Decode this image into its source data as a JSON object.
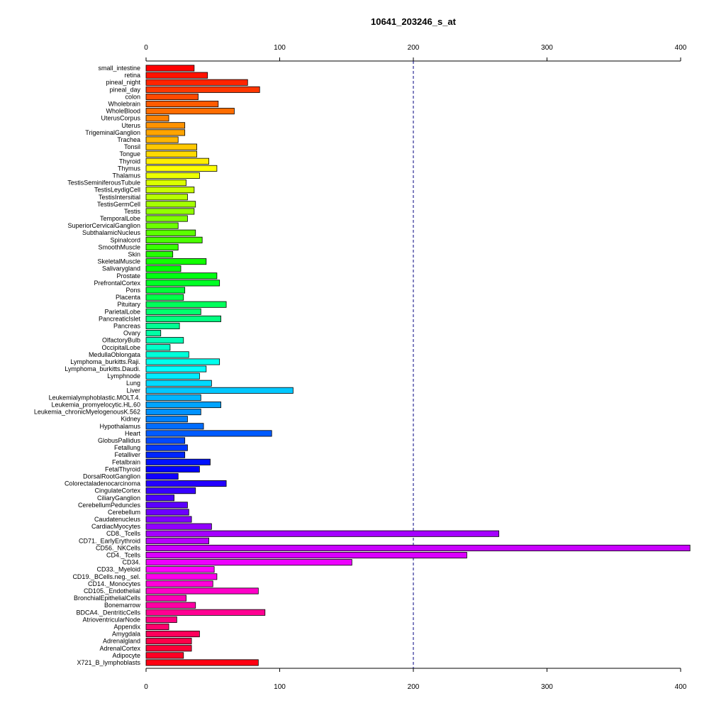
{
  "chart_data": {
    "type": "bar",
    "orientation": "horizontal",
    "title": "10641_203246_s_at",
    "xlabel": "",
    "ylabel": "",
    "xlim": [
      0,
      400
    ],
    "xticks": [
      0,
      100,
      200,
      300,
      400
    ],
    "xtick_labels": [
      "0",
      "100",
      "200",
      "300",
      "400"
    ],
    "axes": [
      "top",
      "bottom"
    ],
    "reference_line": {
      "value": 200,
      "style": "dashed",
      "color": "#000080"
    },
    "grid": false,
    "legend": "none",
    "categories": [
      "small_intestine",
      "retina",
      "pineal_night",
      "pineal_day",
      "colon",
      "Wholebrain",
      "WholeBlood",
      "UterusCorpus",
      "Uterus",
      "TrigeminalGanglion",
      "Trachea",
      "Tonsil",
      "Tongue",
      "Thyroid",
      "Thymus",
      "Thalamus",
      "TestisSeminiferousTubule",
      "TestisLeydigCell",
      "TestisIntersitial",
      "TestisGermCell",
      "Testis",
      "TemporalLobe",
      "SuperiorCervicalGanglion",
      "SubthalamicNucleus",
      "Spinalcord",
      "SmoothMuscle",
      "Skin",
      "SkeletalMuscle",
      "Salivarygland",
      "Prostate",
      "PrefrontalCortex",
      "Pons",
      "Placenta",
      "Pituitary",
      "ParietalLobe",
      "PancreaticIslet",
      "Pancreas",
      "Ovary",
      "OlfactoryBulb",
      "OccipitalLobe",
      "MedullaOblongata",
      "Lymphoma_burkitts.Raji.",
      "Lymphoma_burkitts.Daudi.",
      "Lymphnode",
      "Lung",
      "Liver",
      "Leukemialymphoblastic.MOLT.4.",
      "Leukemia_promyelocytic.HL.60",
      "Leukemia_chronicMyelogenousK.562",
      "Kidney",
      "Hypothalamus",
      "Heart",
      "GlobusPallidus",
      "Fetallung",
      "Fetalliver",
      "Fetalbrain",
      "FetalThyroid",
      "DorsalRootGanglion",
      "Colorectaladenocarcinoma",
      "CingulateCortex",
      "CiliaryGanglion",
      "CerebellumPeduncles",
      "Cerebellum",
      "Caudatenucleus",
      "CardiacMyocytes",
      "CD8._Tcells",
      "CD71._EarlyErythroid",
      "CD56._NKCells",
      "CD4._Tcells",
      "CD34.",
      "CD33._Myeloid",
      "CD19._BCells.neg._sel.",
      "CD14._Monocytes",
      "CD105._Endothelial",
      "BronchialEpithelialCells",
      "Bonemarrow",
      "BDCA4._DentriticCells",
      "AtrioventricularNode",
      "Appendix",
      "Amygdala",
      "Adrenalgland",
      "AdrenalCortex",
      "Adipocyte",
      "X721_B_lymphoblasts"
    ],
    "values": [
      36,
      46,
      76,
      85,
      39,
      54,
      66,
      17,
      29,
      29,
      24,
      38,
      38,
      47,
      53,
      40,
      30,
      36,
      31,
      37,
      36,
      31,
      24,
      37,
      42,
      24,
      20,
      45,
      26,
      53,
      55,
      29,
      28,
      60,
      41,
      56,
      25,
      11,
      28,
      18,
      32,
      55,
      45,
      40,
      49,
      110,
      41,
      56,
      41,
      31,
      43,
      94,
      29,
      31,
      29,
      48,
      40,
      24,
      60,
      37,
      21,
      31,
      32,
      34,
      49,
      264,
      47,
      407,
      240,
      154,
      51,
      53,
      50,
      84,
      30,
      37,
      89,
      23,
      17,
      40,
      34,
      34,
      28,
      84
    ],
    "bar_color_scheme": "rainbow, starting red at top, cycling through yellow, green, cyan, blue, magenta, back to red at bottom"
  }
}
